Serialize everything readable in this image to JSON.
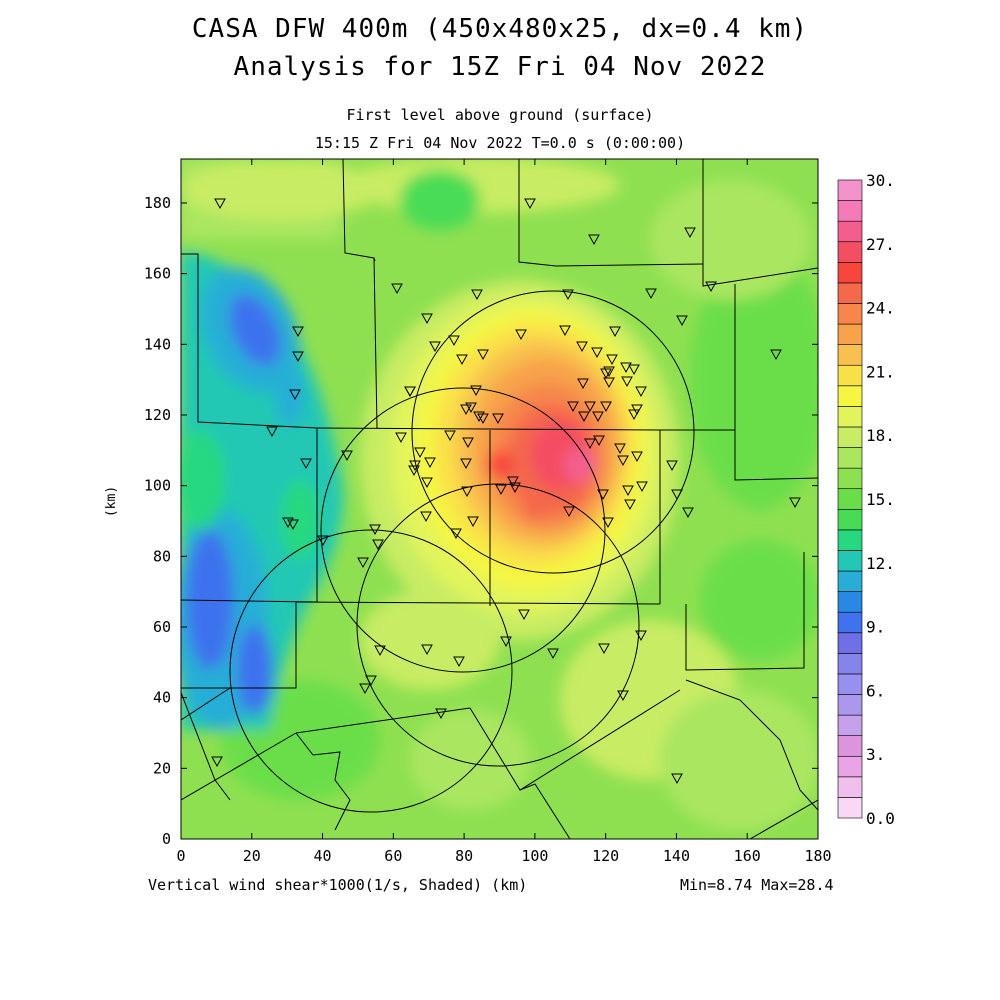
{
  "title_line1": "CASA DFW 400m (450x480x25, dx=0.4 km)",
  "title_line2": "Analysis for 15Z Fri 04 Nov 2022",
  "subtitle_line1": "First level above ground (surface)",
  "subtitle_line2": "15:15 Z Fri 04 Nov 2022    T=0.0 s (0:00:00)",
  "y_axis_unit": "(km)",
  "footer_left": "Vertical wind shear*1000(1/s, Shaded)  (km)",
  "footer_right": "Min=8.74 Max=28.4",
  "x_ticks": [
    "0",
    "20",
    "40",
    "60",
    "80",
    "100",
    "120",
    "140",
    "160",
    "180"
  ],
  "y_ticks": [
    "0",
    "20",
    "40",
    "60",
    "80",
    "100",
    "120",
    "140",
    "160",
    "180"
  ],
  "colorbar": {
    "labels": [
      "30.",
      "27.",
      "24.",
      "21.",
      "18.",
      "15.",
      "12.",
      "9.",
      "6.",
      "3.",
      "0.0"
    ],
    "colors": [
      "#f8d8f4",
      "#f0c0ec",
      "#e8a4e4",
      "#dc94dc",
      "#c6a0e8",
      "#aa98ec",
      "#9890ee",
      "#8484ea",
      "#7070e6",
      "#3e72ee",
      "#2888e4",
      "#28aed6",
      "#22c8b4",
      "#28d880",
      "#48dc56",
      "#6ade48",
      "#8ee050",
      "#aae660",
      "#c8ec64",
      "#e2f45c",
      "#f4f642",
      "#fae048",
      "#f8c04e",
      "#f8a24c",
      "#f6864c",
      "#f4684c",
      "#f8463c",
      "#f44e62",
      "#f45e8e",
      "#f47ab8",
      "#f492cc"
    ]
  }
}
